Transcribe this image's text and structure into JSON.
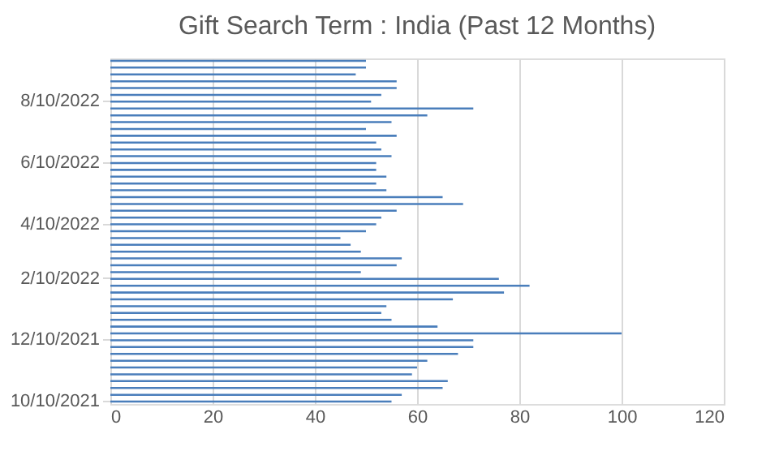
{
  "chart_data": {
    "type": "bar",
    "orientation": "horizontal",
    "title": "Gift Search Term  : India (Past 12 Months)",
    "categories": [
      null,
      null,
      null,
      null,
      null,
      null,
      "8/10/2022",
      null,
      null,
      null,
      null,
      null,
      null,
      null,
      null,
      "6/10/2022",
      null,
      null,
      null,
      null,
      null,
      null,
      null,
      null,
      "4/10/2022",
      null,
      null,
      null,
      null,
      null,
      null,
      null,
      "2/10/2022",
      null,
      null,
      null,
      null,
      null,
      null,
      null,
      null,
      "12/10/2021",
      null,
      null,
      null,
      null,
      null,
      null,
      null,
      null,
      "10/10/2021"
    ],
    "values": [
      50,
      50,
      48,
      56,
      56,
      53,
      51,
      71,
      62,
      55,
      50,
      56,
      52,
      53,
      55,
      52,
      52,
      54,
      52,
      54,
      65,
      69,
      56,
      53,
      52,
      50,
      45,
      47,
      49,
      57,
      56,
      49,
      76,
      82,
      77,
      67,
      54,
      53,
      55,
      64,
      100,
      71,
      71,
      68,
      62,
      60,
      59,
      66,
      65,
      57,
      55
    ],
    "color": "#4a7ebb",
    "xlim": [
      0,
      120
    ],
    "xticks": [
      0,
      20,
      40,
      60,
      80,
      100,
      120
    ],
    "grid": "x"
  }
}
